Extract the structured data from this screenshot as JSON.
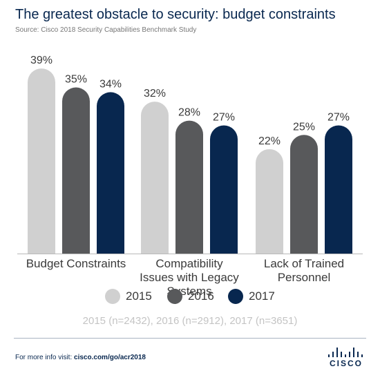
{
  "header": {
    "title": "The greatest obstacle to security: budget constraints",
    "source": "Source: Cisco 2018 Security Capabilities Benchmark Study"
  },
  "chart_data": {
    "type": "bar",
    "title": "The greatest obstacle to security: budget constraints",
    "xlabel": "",
    "ylabel": "",
    "ylim": [
      0,
      40
    ],
    "grid": false,
    "legend_position": "bottom",
    "categories": [
      "Budget Constraints",
      "Compatibility Issues with Legacy Systems",
      "Lack of Trained Personnel"
    ],
    "series": [
      {
        "name": "2015",
        "color": "#d0d0d0",
        "values": [
          39,
          32,
          22
        ]
      },
      {
        "name": "2016",
        "color": "#58595b",
        "values": [
          35,
          28,
          25
        ]
      },
      {
        "name": "2017",
        "color": "#08274f",
        "values": [
          34,
          27,
          27
        ]
      }
    ],
    "value_suffix": "%"
  },
  "sample_note": "2015 (n=2432), 2016 (n=2912), 2017 (n=3651)",
  "footer": {
    "prefix": "For more info visit: ",
    "link": "cisco.com/go/acr2018"
  },
  "logo": {
    "name": "cisco-logo",
    "text": "CISCO",
    "color": "#08274f"
  }
}
